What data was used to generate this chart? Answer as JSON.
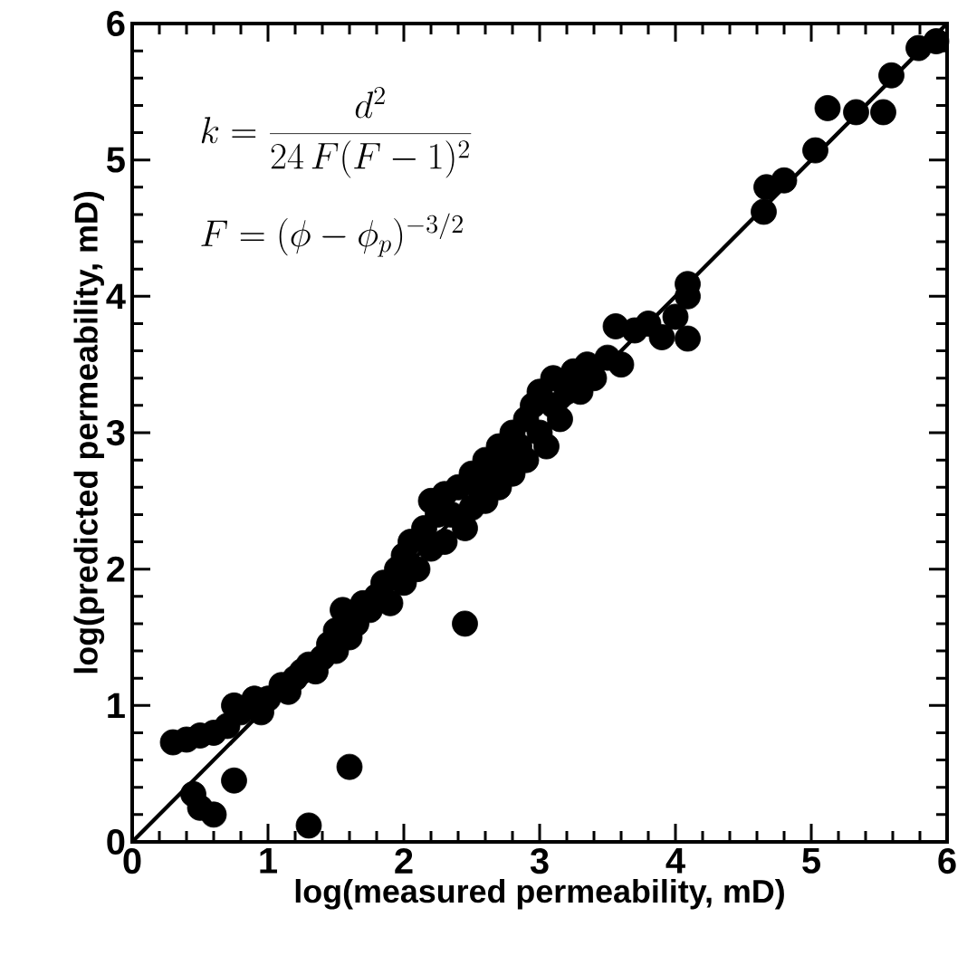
{
  "chart_data": {
    "type": "scatter",
    "xlabel": "log(measured permeability, mD)",
    "ylabel": "log(predicted permeability, mD)",
    "annotations": [
      "k=\\frac{d^2}{24\\,F(F-1)^2}",
      "F=(\\phi-\\phi_p)^{-3/2}"
    ],
    "xlim": [
      0,
      6
    ],
    "ylim": [
      0,
      6
    ],
    "xticks": [
      0,
      1,
      2,
      3,
      4,
      5,
      6
    ],
    "yticks": [
      0,
      1,
      2,
      3,
      4,
      5,
      6
    ],
    "series": [
      {
        "marker": "circle",
        "color": "#000000",
        "x": [
          0.3,
          0.4,
          0.5,
          0.6,
          0.7,
          0.75,
          0.8,
          0.9,
          0.95,
          1.0,
          1.1,
          1.15,
          1.2,
          1.25,
          1.3,
          1.35,
          1.4,
          1.45,
          1.5,
          1.5,
          1.55,
          1.6,
          1.65,
          1.7,
          1.75,
          1.8,
          1.85,
          1.9,
          1.95,
          2.0,
          2.0,
          2.05,
          2.1,
          2.15,
          2.2,
          2.2,
          2.25,
          2.3,
          2.3,
          2.35,
          2.4,
          2.45,
          2.5,
          2.5,
          2.55,
          2.6,
          2.6,
          2.65,
          2.7,
          2.7,
          2.75,
          2.8,
          2.8,
          2.85,
          2.9,
          2.9,
          2.95,
          3.0,
          3.0,
          3.05,
          3.1,
          3.1,
          3.15,
          3.2,
          3.25,
          3.3,
          3.35,
          3.4,
          3.5,
          3.56,
          3.6,
          3.7,
          3.8,
          3.9,
          4.0,
          4.09,
          4.09,
          4.09,
          4.65,
          4.67,
          4.8,
          5.03,
          5.12,
          5.33,
          5.53,
          5.59,
          5.79,
          5.92,
          0.45,
          0.5,
          0.6,
          0.75,
          1.3,
          1.6,
          2.45
        ],
        "values": [
          0.73,
          0.75,
          0.78,
          0.8,
          0.85,
          1.0,
          0.95,
          1.05,
          0.95,
          1.05,
          1.15,
          1.1,
          1.2,
          1.25,
          1.3,
          1.25,
          1.35,
          1.45,
          1.4,
          1.55,
          1.7,
          1.5,
          1.6,
          1.75,
          1.7,
          1.8,
          1.9,
          1.75,
          2.0,
          1.9,
          2.1,
          2.2,
          2.0,
          2.3,
          2.5,
          2.15,
          2.4,
          2.2,
          2.55,
          2.4,
          2.6,
          2.3,
          2.7,
          2.45,
          2.6,
          2.8,
          2.5,
          2.7,
          2.9,
          2.6,
          2.8,
          3.0,
          2.7,
          2.9,
          3.1,
          2.8,
          3.2,
          3.0,
          3.3,
          2.9,
          3.2,
          3.4,
          3.1,
          3.3,
          3.45,
          3.3,
          3.5,
          3.4,
          3.55,
          3.78,
          3.5,
          3.75,
          3.8,
          3.7,
          3.85,
          4.09,
          3.69,
          4.0,
          4.62,
          4.8,
          4.85,
          5.07,
          5.38,
          5.35,
          5.35,
          5.62,
          5.82,
          5.87,
          0.35,
          0.25,
          0.2,
          0.45,
          0.12,
          0.55,
          1.6
        ]
      },
      {
        "type": "line",
        "marker": "none",
        "color": "#000000",
        "x": [
          0,
          6
        ],
        "values": [
          0,
          6
        ]
      }
    ]
  }
}
